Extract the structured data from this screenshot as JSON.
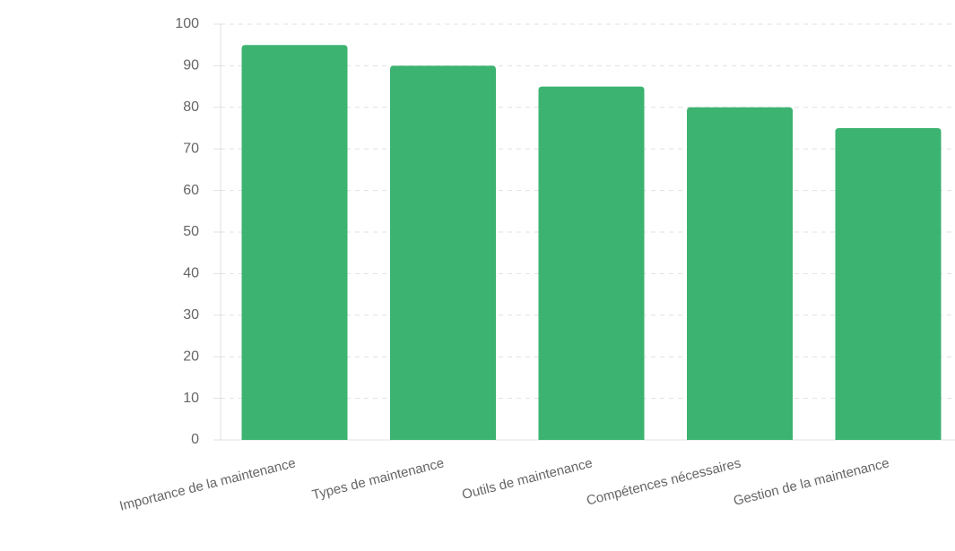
{
  "chart_data": {
    "type": "bar",
    "categories": [
      "Importance de la maintenance",
      "Types de maintenance",
      "Outils de maintenance",
      "Compétences nécessaires",
      "Gestion de la maintenance"
    ],
    "values": [
      95,
      90,
      85,
      80,
      75
    ],
    "color": "#3cb371",
    "ylim": [
      0,
      100
    ],
    "yticks": [
      0,
      10,
      20,
      30,
      40,
      50,
      60,
      70,
      80,
      90,
      100
    ],
    "grid": true
  }
}
